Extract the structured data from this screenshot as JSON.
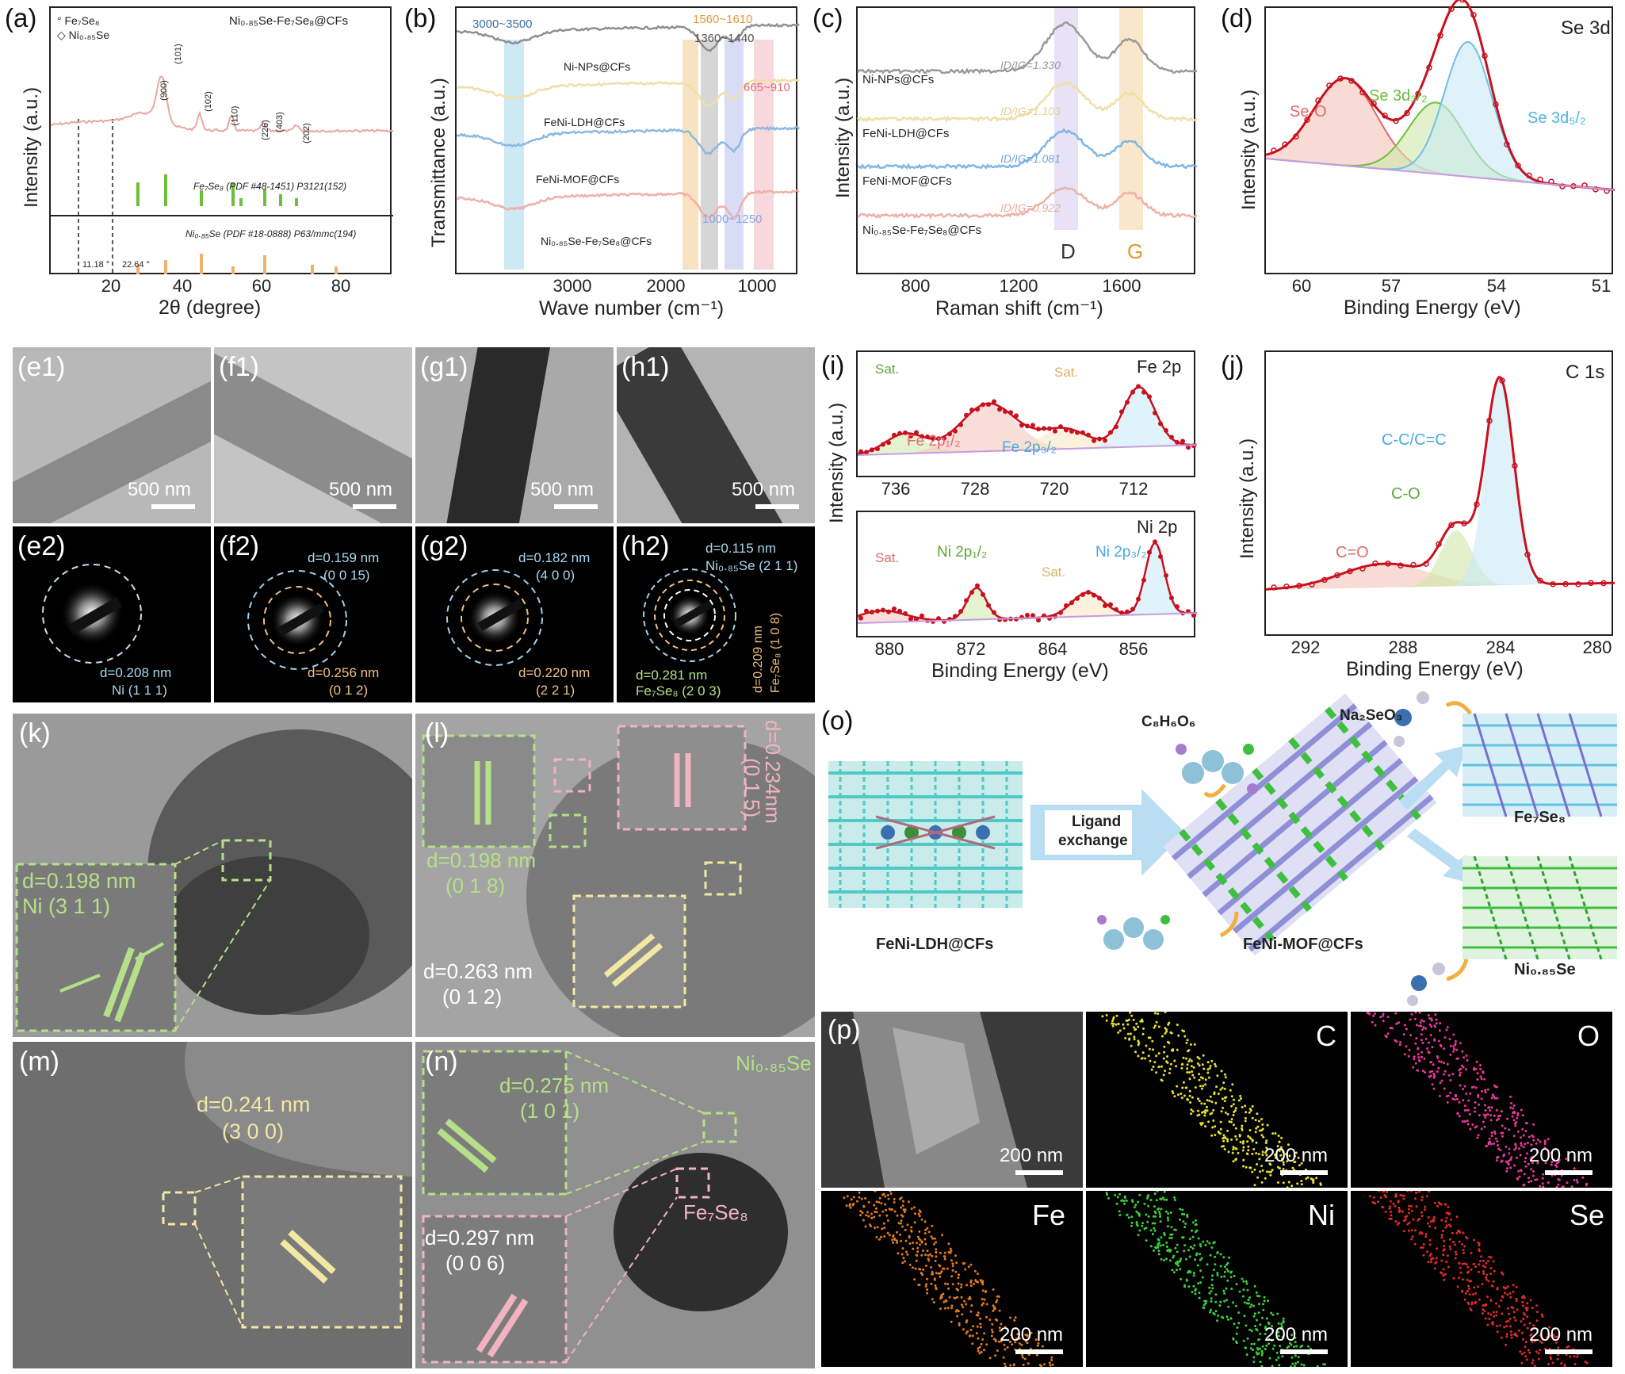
{
  "chart_data": [
    {
      "id": "a",
      "type": "line",
      "label": "(a)",
      "ylabel": "Intensity (a.u.)",
      "xlabel": "2θ (degree)",
      "xticks": [
        "20",
        "40",
        "60",
        "80"
      ],
      "xlim": [
        5,
        90
      ],
      "legend": [
        "Fe7Se8",
        "Ni0.85Se"
      ],
      "legend_display": [
        "Fe₇Se₈",
        "Ni₀.₈₅Se"
      ],
      "title": "Ni0.85Se-Fe7Se8@CFs",
      "title_display": "Ni₀.₈₅Se-Fe₇Se₈@CFs",
      "peaks": [
        "(900)",
        "(101)",
        "(102)",
        "(110)",
        "(226)",
        "(403)",
        "(202)"
      ],
      "ref1": "Fe7Se8 (PDF #48-1451) P3121(152)",
      "ref1_display": "Fe₇Se₈ (PDF #48-1451) P3121(152)",
      "ref2": "Ni0.85Se (PDF #18-0888) P63/mmc(194)",
      "ref2_display": "Ni₀.₈₅Se (PDF #18-0888) P63/mmc(194)",
      "angle1": "11.18 °",
      "angle2": "22.64 °"
    },
    {
      "id": "b",
      "type": "line",
      "label": "(b)",
      "ylabel": "Transmittance (a.u.)",
      "xlabel": "Wave number (cm⁻¹)",
      "xticks": [
        "3000",
        "2000",
        "1000"
      ],
      "series": [
        "Ni-NPs@CFs",
        "FeNi-LDH@CFs",
        "FeNi-MOF@CFs",
        "Ni0.85Se-Fe7Se8@CFs"
      ],
      "series_display": [
        "Ni-NPs@CFs",
        "FeNi-LDH@CFs",
        "FeNi-MOF@CFs",
        "Ni₀.₈₅Se-Fe₇Se₈@CFs"
      ],
      "bands": [
        "3000~3500",
        "1560~1610",
        "1360~1440",
        "665~910",
        "1000~1250"
      ]
    },
    {
      "id": "c",
      "type": "line",
      "label": "(c)",
      "ylabel": "Intensity (a.u.)",
      "xlabel": "Raman shift (cm⁻¹)",
      "xticks": [
        "800",
        "1200",
        "1600"
      ],
      "series": [
        "Ni-NPs@CFs",
        "FeNi-LDH@CFs",
        "FeNi-MOF@CFs",
        "Ni0.85Se-Fe7Se8@CFs"
      ],
      "series_display": [
        "Ni-NPs@CFs",
        "FeNi-LDH@CFs",
        "FeNi-MOF@CFs",
        "Ni₀.₈₅Se-Fe₇Se₈@CFs"
      ],
      "ratios": [
        "ID/IG=1.330",
        "ID/IG=1.103",
        "ID/IG=1.081",
        "ID/IG=0.922"
      ],
      "bands": [
        "D",
        "G"
      ]
    },
    {
      "id": "d",
      "type": "line",
      "label": "(d)",
      "title": "Se 3d",
      "ylabel": "Intensity (a.u.)",
      "xlabel": "Binding Energy (eV)",
      "xticks": [
        "60",
        "57",
        "54",
        "51"
      ],
      "peaks": [
        "Se-O",
        "Se 3d3/2",
        "Se 3d5/2"
      ],
      "peaks_display": [
        "Se-O",
        "Se 3d₃/₂",
        "Se 3d₅/₂"
      ]
    },
    {
      "id": "i",
      "type": "line",
      "label": "(i)",
      "ylabel": "Intensity (a.u.)",
      "xlabel": "Binding Energy (eV)",
      "top": {
        "title": "Fe 2p",
        "xticks": [
          "736",
          "728",
          "720",
          "712"
        ],
        "peaks": [
          "Sat.",
          "Sat.",
          "Fe 2p1/2",
          "Fe 2p3/2"
        ],
        "peaks_display": [
          "Sat.",
          "Sat.",
          "Fe 2p₁/₂",
          "Fe 2p₃/₂"
        ]
      },
      "bottom": {
        "title": "Ni 2p",
        "xticks": [
          "880",
          "872",
          "864",
          "856"
        ],
        "peaks": [
          "Sat.",
          "Ni 2p1/2",
          "Sat.",
          "Ni 2p3/2"
        ],
        "peaks_display": [
          "Sat.",
          "Ni 2p₁/₂",
          "Sat.",
          "Ni 2p₃/₂"
        ]
      }
    },
    {
      "id": "j",
      "type": "line",
      "label": "(j)",
      "title": "C 1s",
      "ylabel": "Intensity (a.u.)",
      "xlabel": "Binding Energy (eV)",
      "xticks": [
        "292",
        "288",
        "284",
        "280"
      ],
      "peaks": [
        "C=O",
        "C-O",
        "C-C/C=C"
      ]
    }
  ],
  "tem": [
    {
      "label": "(e1)",
      "scale": "500 nm"
    },
    {
      "label": "(f1)",
      "scale": "500 nm"
    },
    {
      "label": "(g1)",
      "scale": "500 nm"
    },
    {
      "label": "(h1)",
      "scale": "500 nm"
    }
  ],
  "saed": [
    {
      "label": "(e2)",
      "a1": "d=0.208 nm",
      "a2": "Ni   (1 1 1)"
    },
    {
      "label": "(f2)",
      "a1": "d=0.159 nm",
      "a2": "(0 0 15)",
      "a3": "d=0.256 nm",
      "a4": "(0 1 2)"
    },
    {
      "label": "(g2)",
      "a1": "d=0.182 nm",
      "a2": "(4 0 0)",
      "a3": "d=0.220 nm",
      "a4": "(2 2 1)"
    },
    {
      "label": "(h2)",
      "a1": "d=0.115 nm",
      "a2": "Ni0.85Se (2 1 1)",
      "a2_display": "Ni₀.₈₅Se (2 1 1)",
      "a3": "d=0.281 nm",
      "a4": "Fe7Se8 (2 0 3)",
      "a4_display": "Fe₇Se₈ (2 0 3)",
      "a5": "d=0.209 nm",
      "a6": "Fe7Se8 (1 0 8)",
      "a6_display": "Fe₇Se₈ (1 0 8)"
    }
  ],
  "hrtem": [
    {
      "label": "(k)",
      "d": "d=0.198 nm",
      "hkl": "Ni    (3 1 1)"
    },
    {
      "label": "(l)",
      "d1": "d=0.234nm",
      "hkl1": "(0 1 5)",
      "d2": "d=0.198 nm",
      "hkl2": "(0 1 8)",
      "d3": "d=0.263 nm",
      "hkl3": "(0 1 2)"
    },
    {
      "label": "(m)",
      "d": "d=0.241 nm",
      "hkl": "(3 0 0)"
    },
    {
      "label": "(n)",
      "d1": "d=0.275 nm",
      "hkl1": "(1 0 1)",
      "d2": "d=0.297 nm",
      "hkl2": "(0 0 6)",
      "ph1": "Ni0.85Se",
      "ph1_display": "Ni₀.₈₅Se",
      "ph2": "Fe7Se8",
      "ph2_display": "Fe₇Se₈"
    }
  ],
  "scheme": {
    "label": "(o)",
    "ldh": "FeNi-LDH@CFs",
    "arrow1": "Ligand",
    "arrow2": "exchange",
    "mof": "FeNi-MOF@CFs",
    "reag1": "C8H6O6",
    "reag1_display": "C₈H₆O₆",
    "reag2": "Na2SeO3",
    "reag2_display": "Na₂SeO₃",
    "prod1": "Fe7Se8",
    "prod1_display": "Fe₇Se₈",
    "prod2": "Ni0.85Se",
    "prod2_display": "Ni₀.₈₅Se"
  },
  "mapping": {
    "label": "(p)",
    "scale": "200 nm",
    "elements": [
      "",
      "C",
      "O",
      "Fe",
      "Ni",
      "Se"
    ]
  },
  "colors": {
    "pink": "#e9a7a0",
    "red": "#c8101e",
    "green": "#6dbf3a",
    "blue": "#6ec0e6",
    "yellow": "#eee0a0",
    "purple": "#c7a3dd",
    "tan": "#f0c98c",
    "gray": "#9a9a9a"
  }
}
